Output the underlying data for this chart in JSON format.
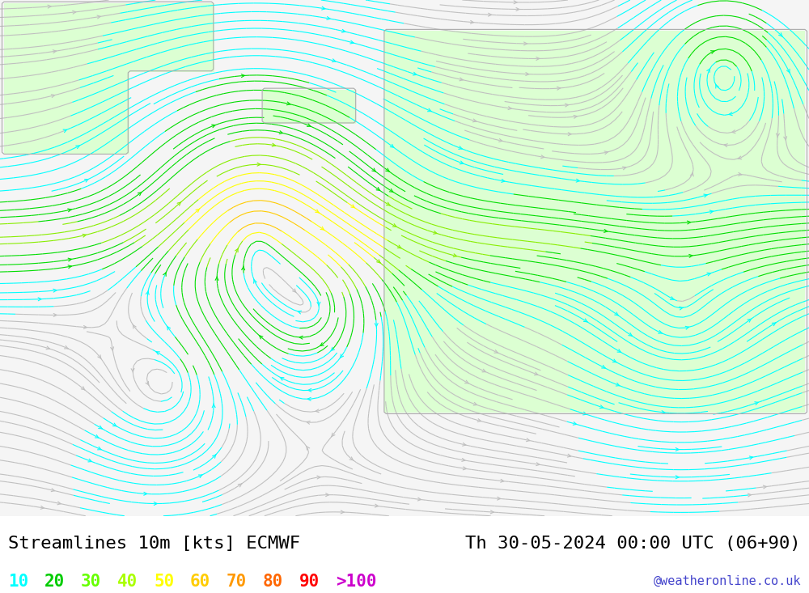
{
  "title_left": "Streamlines 10m [kts] ECMWF",
  "title_right": "Th 30-05-2024 00:00 UTC (06+90)",
  "watermark": "@weatheronline.co.uk",
  "legend_values": [
    "10",
    "20",
    "30",
    "40",
    "50",
    "60",
    "70",
    "80",
    "90",
    ">100"
  ],
  "legend_colors": [
    "#00ffff",
    "#00cc00",
    "#66ff00",
    "#aaff00",
    "#ffff00",
    "#ffcc00",
    "#ff9900",
    "#ff6600",
    "#ff0000",
    "#cc00cc"
  ],
  "bg_color": "#ffffff",
  "land_color": "#e8ffe8",
  "sea_color": "#f0f0f0",
  "coast_color": "#aaaaaa",
  "streamline_color_slow": "#ffff00",
  "streamline_color_fast": "#00cc00",
  "font_size_title": 16,
  "font_size_legend": 15,
  "map_extent": [
    -55,
    40,
    25,
    75
  ]
}
